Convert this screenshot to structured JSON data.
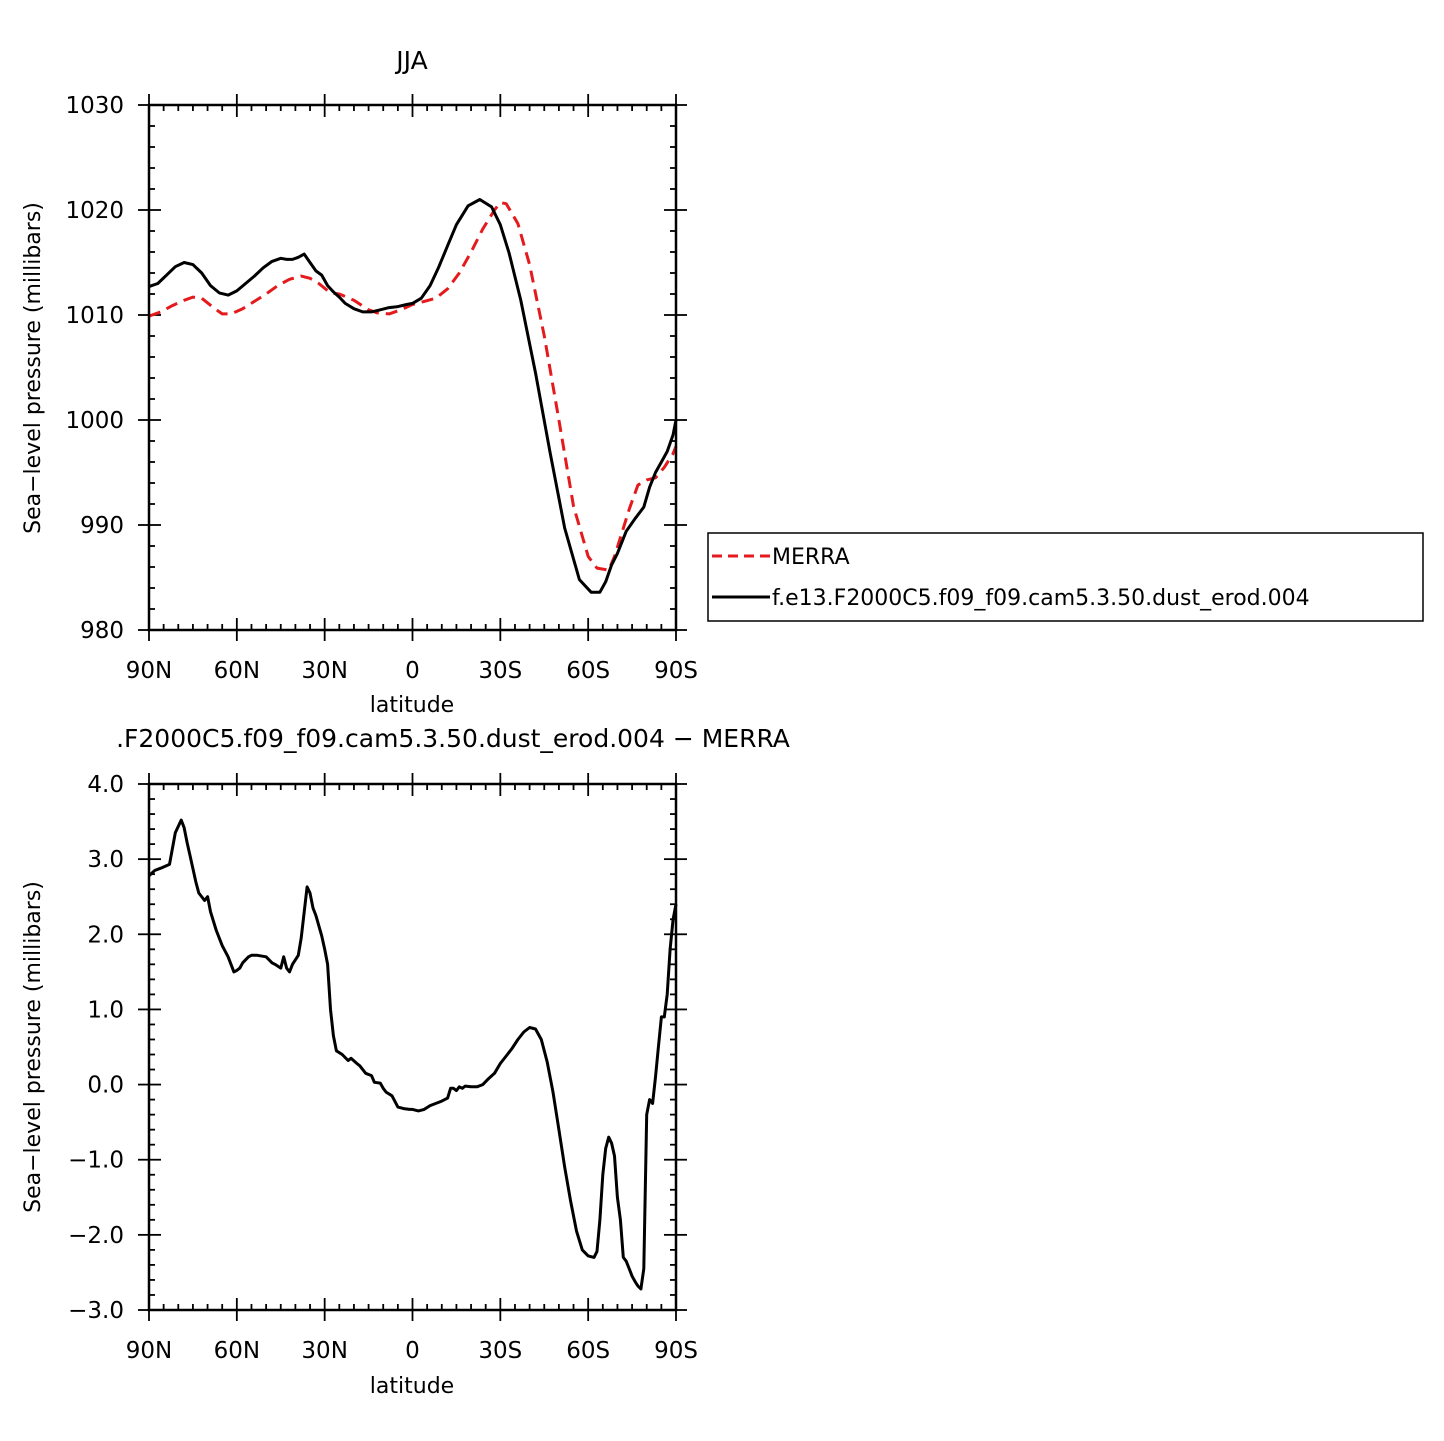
{
  "chart_data": [
    {
      "type": "line",
      "title": "JJA",
      "xlabel": "latitude",
      "ylabel": "Sea-level pressure (millibars)",
      "xlim": [
        90,
        -90
      ],
      "ylim": [
        980,
        1030
      ],
      "xtick_values": [
        90,
        60,
        30,
        0,
        -30,
        -60,
        -90
      ],
      "xtick_labels": [
        "90N",
        "60N",
        "30N",
        "0",
        "30S",
        "60S",
        "90S"
      ],
      "ytick_values": [
        980,
        990,
        1000,
        1010,
        1020,
        1030
      ],
      "ytick_labels": [
        "980",
        "990",
        "1000",
        "1010",
        "1020",
        "1030"
      ],
      "legend_position": "right",
      "series": [
        {
          "name": "MERRA",
          "color": "#e41a1c",
          "dash": "dashed",
          "x": [
            90,
            86,
            82,
            78,
            75,
            72,
            68,
            65,
            62,
            58,
            54,
            50,
            46,
            42,
            38,
            35,
            32,
            28,
            25,
            20,
            15,
            12,
            8,
            4,
            0,
            -4,
            -8,
            -12,
            -16,
            -20,
            -24,
            -28,
            -30,
            -32,
            -36,
            -40,
            -45,
            -50,
            -55,
            -60,
            -63,
            -65,
            -67,
            -69,
            -71,
            -74,
            -77,
            -80,
            -83,
            -86,
            -89,
            -90
          ],
          "y": [
            1009.9,
            1010.3,
            1010.9,
            1011.4,
            1011.7,
            1011.6,
            1010.7,
            1010.1,
            1010.1,
            1010.6,
            1011.3,
            1012.0,
            1012.8,
            1013.4,
            1013.7,
            1013.5,
            1013.0,
            1012.1,
            1012.0,
            1011.4,
            1010.5,
            1010.2,
            1010.1,
            1010.5,
            1011.0,
            1011.3,
            1011.6,
            1012.5,
            1014.0,
            1016.0,
            1018.2,
            1020.0,
            1020.7,
            1020.6,
            1018.7,
            1014.8,
            1008.0,
            1000.0,
            991.8,
            987.0,
            985.9,
            985.8,
            985.7,
            987.0,
            988.8,
            991.5,
            993.8,
            994.3,
            994.5,
            995.5,
            996.8,
            997.5
          ]
        },
        {
          "name": "f.e13.F2000C5.f09_f09.cam5.3.50.dust_erod.004",
          "color": "#000000",
          "dash": "solid",
          "x": [
            90,
            87,
            84,
            81,
            78,
            75,
            72,
            69,
            66,
            63,
            60,
            57,
            54,
            51,
            48,
            45,
            43,
            41,
            39,
            37,
            35,
            33,
            31,
            29,
            27,
            25,
            23,
            20,
            17,
            14,
            11,
            8,
            5,
            2,
            0,
            -3,
            -6,
            -9,
            -12,
            -15,
            -19,
            -23,
            -27,
            -30,
            -33,
            -37,
            -42,
            -47,
            -52,
            -57,
            -61,
            -64,
            -66,
            -68,
            -70,
            -73,
            -76,
            -79,
            -81,
            -83,
            -85,
            -87,
            -89,
            -90
          ],
          "y": [
            1012.7,
            1013.0,
            1013.8,
            1014.6,
            1015.0,
            1014.8,
            1014.0,
            1012.8,
            1012.1,
            1011.9,
            1012.3,
            1013.0,
            1013.7,
            1014.5,
            1015.1,
            1015.4,
            1015.3,
            1015.3,
            1015.5,
            1015.8,
            1015.0,
            1014.2,
            1013.8,
            1012.8,
            1012.2,
            1011.7,
            1011.1,
            1010.6,
            1010.3,
            1010.3,
            1010.5,
            1010.7,
            1010.8,
            1011.0,
            1011.1,
            1011.6,
            1012.8,
            1014.6,
            1016.6,
            1018.6,
            1020.4,
            1021.0,
            1020.3,
            1018.6,
            1015.9,
            1011.4,
            1004.5,
            996.9,
            989.7,
            984.8,
            983.6,
            983.6,
            984.6,
            986.2,
            987.3,
            989.4,
            990.6,
            991.7,
            993.6,
            995.0,
            996.0,
            997.0,
            998.6,
            1000.0
          ]
        }
      ]
    },
    {
      "type": "line",
      "title": ".F2000C5.f09_f09.cam5.3.50.dust_erod.004 - MERRA",
      "xlabel": "latitude",
      "ylabel": "Sea-level pressure (millibars)",
      "xlim": [
        90,
        -90
      ],
      "ylim": [
        -3.0,
        4.0
      ],
      "xtick_values": [
        90,
        60,
        30,
        0,
        -30,
        -60,
        -90
      ],
      "xtick_labels": [
        "90N",
        "60N",
        "30N",
        "0",
        "30S",
        "60S",
        "90S"
      ],
      "ytick_values": [
        -3.0,
        -2.0,
        -1.0,
        0.0,
        1.0,
        2.0,
        3.0,
        4.0
      ],
      "ytick_labels": [
        "-3.0",
        "-2.0",
        "-1.0",
        "0.0",
        "1.0",
        "2.0",
        "3.0",
        "4.0"
      ],
      "series": [
        {
          "color": "#000000",
          "dash": "solid",
          "x": [
            90,
            88,
            86,
            83,
            81,
            79,
            78,
            77,
            76,
            74,
            73,
            71,
            70,
            69,
            67,
            65,
            63,
            61,
            60,
            59,
            58,
            56,
            55,
            53,
            50,
            48,
            47,
            45,
            44,
            43,
            42,
            41,
            39,
            38,
            36,
            35,
            34,
            33,
            31,
            30,
            29,
            28,
            27,
            26,
            24,
            22,
            21,
            19,
            18,
            16,
            14,
            13,
            11,
            10,
            9,
            7,
            5,
            3,
            1,
            0,
            -2,
            -4,
            -6,
            -8,
            -10,
            -12,
            -13,
            -14,
            -15,
            -16,
            -17,
            -18,
            -20,
            -22,
            -24,
            -26,
            -28,
            -30,
            -32,
            -34,
            -36,
            -38,
            -40,
            -42,
            -44,
            -46,
            -48,
            -50,
            -52,
            -54,
            -56,
            -58,
            -60,
            -62,
            -63,
            -64,
            -65,
            -66,
            -67,
            -68,
            -69,
            -70,
            -71,
            -72,
            -73,
            -74,
            -75,
            -76,
            -77,
            -78,
            -79,
            -80,
            -81,
            -82,
            -83,
            -84,
            -85,
            -86,
            -87,
            -88,
            -89,
            -90
          ],
          "y": [
            2.78,
            2.85,
            2.88,
            2.93,
            3.35,
            3.52,
            3.42,
            3.22,
            3.05,
            2.7,
            2.55,
            2.45,
            2.5,
            2.3,
            2.05,
            1.85,
            1.7,
            1.5,
            1.52,
            1.55,
            1.62,
            1.7,
            1.72,
            1.72,
            1.7,
            1.62,
            1.6,
            1.55,
            1.7,
            1.55,
            1.5,
            1.6,
            1.72,
            1.95,
            2.63,
            2.55,
            2.35,
            2.25,
            1.98,
            1.8,
            1.6,
            1.0,
            0.65,
            0.45,
            0.4,
            0.32,
            0.35,
            0.28,
            0.25,
            0.15,
            0.12,
            0.03,
            0.02,
            -0.05,
            -0.1,
            -0.15,
            -0.3,
            -0.32,
            -0.33,
            -0.33,
            -0.35,
            -0.33,
            -0.28,
            -0.25,
            -0.22,
            -0.18,
            -0.05,
            -0.05,
            -0.08,
            -0.03,
            -0.05,
            -0.02,
            -0.03,
            -0.03,
            0.0,
            0.08,
            0.15,
            0.28,
            0.38,
            0.48,
            0.6,
            0.7,
            0.76,
            0.74,
            0.6,
            0.3,
            -0.1,
            -0.6,
            -1.1,
            -1.55,
            -1.95,
            -2.2,
            -2.28,
            -2.3,
            -2.22,
            -1.8,
            -1.2,
            -0.85,
            -0.7,
            -0.78,
            -0.95,
            -1.5,
            -1.8,
            -2.3,
            -2.35,
            -2.45,
            -2.55,
            -2.62,
            -2.68,
            -2.72,
            -2.45,
            -0.4,
            -0.2,
            -0.25,
            0.1,
            0.5,
            0.9,
            0.9,
            1.2,
            1.8,
            2.2,
            2.4
          ]
        }
      ]
    }
  ]
}
